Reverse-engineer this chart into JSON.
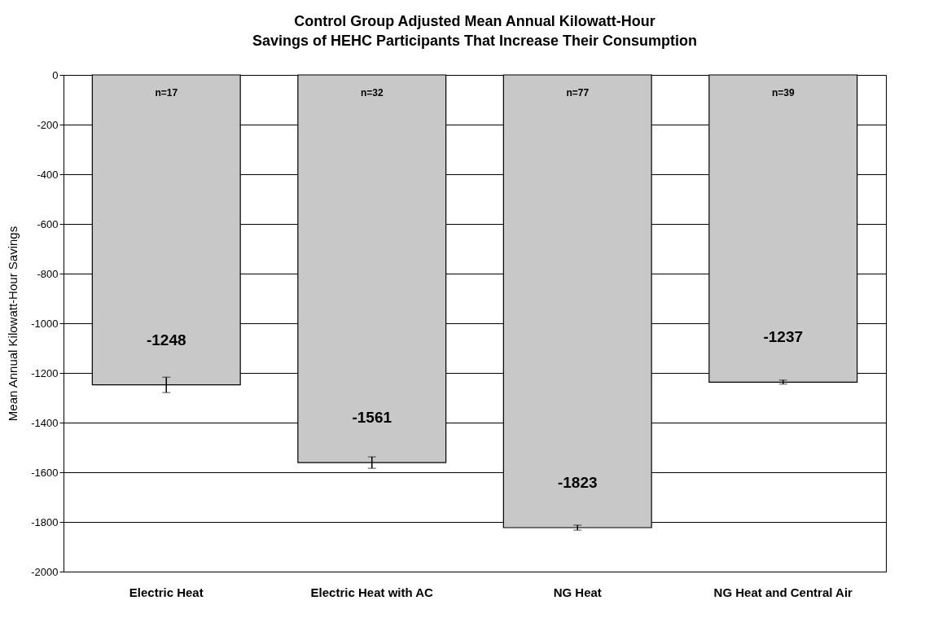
{
  "chart_data": {
    "type": "bar",
    "title": "Control Group Adjusted Mean Annual Kilowatt-Hour\nSavings of HEHC Participants That Increase Their Consumption",
    "ylabel": "Mean Annual Kilowatt-Hour Savings",
    "categories": [
      "Electric Heat",
      "Electric Heat with AC",
      "NG Heat",
      "NG Heat and Central Air"
    ],
    "values": [
      -1248,
      -1561,
      -1823,
      -1237
    ],
    "errors": [
      31,
      23,
      10,
      8
    ],
    "color": "#c8c8c8",
    "data_labels": true,
    "annotations": [
      {
        "text": "n=17",
        "x": "Electric Heat",
        "y": 0
      },
      {
        "text": "n=32",
        "x": "Electric Heat with AC",
        "y": 0
      },
      {
        "text": "n=77",
        "x": "NG Heat",
        "y": 0
      },
      {
        "text": "n=39",
        "x": "NG Heat and Central Air",
        "y": 0
      }
    ],
    "ylim": [
      -2000,
      0
    ],
    "yticks": [
      -2000,
      -1800,
      -1600,
      -1400,
      -1200,
      -1000,
      -800,
      -600,
      -400,
      -200,
      0
    ],
    "grid": "y"
  }
}
